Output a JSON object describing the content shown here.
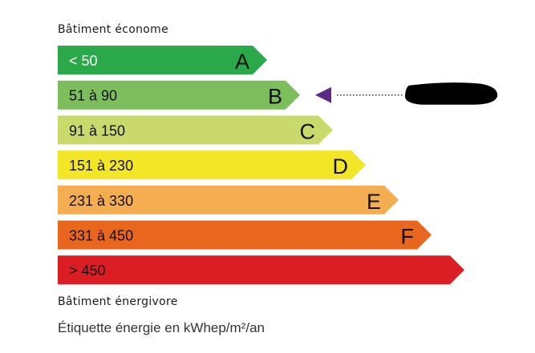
{
  "header": {
    "top_label": "Bâtiment économe",
    "bottom_label": "Bâtiment énergivore"
  },
  "caption": "Étiquette énergie en kWhep/m²/an",
  "classes": [
    {
      "letter": "A",
      "range": "< 50",
      "color": "#2ba84a",
      "text_color": "#ffffff"
    },
    {
      "letter": "B",
      "range": "51 à 90",
      "color": "#7cbd5c",
      "text_color": "#111111"
    },
    {
      "letter": "C",
      "range": "91 à 150",
      "color": "#c9d96b",
      "text_color": "#111111"
    },
    {
      "letter": "D",
      "range": "151 à 230",
      "color": "#f2e626",
      "text_color": "#111111"
    },
    {
      "letter": "E",
      "range": "231 à 330",
      "color": "#f4ad50",
      "text_color": "#111111"
    },
    {
      "letter": "F",
      "range": "331 à 450",
      "color": "#e9661f",
      "text_color": "#111111"
    },
    {
      "letter": "",
      "range": "> 450",
      "color": "#db1d24",
      "text_color": "#111111"
    }
  ],
  "indicator": {
    "class": "B",
    "color": "#5b2a86",
    "value_redacted": true
  }
}
